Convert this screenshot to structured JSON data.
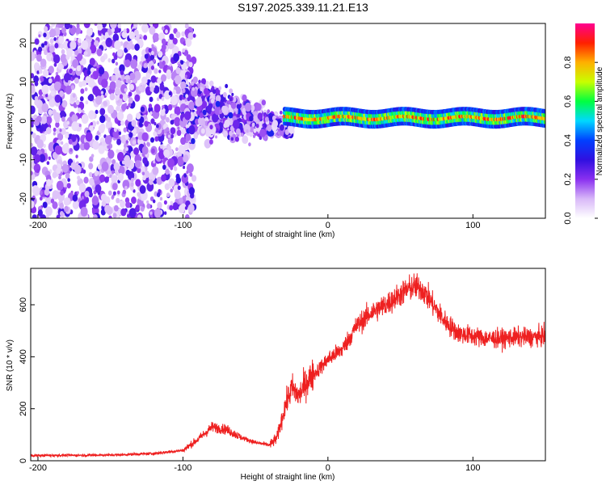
{
  "title": "S197.2025.339.11.21.E13",
  "chart_data": [
    {
      "type": "heatmap",
      "xlabel": "Height of straight line (km)",
      "ylabel": "Frequency (Hz)",
      "xlim": [
        -205,
        150
      ],
      "ylim": [
        -25,
        25
      ],
      "xticks": [
        -200,
        -100,
        0,
        100
      ],
      "yticks": [
        -20,
        -10,
        0,
        10,
        20
      ],
      "colorbar": {
        "label": "Normalized spectral amplitude",
        "range": [
          0,
          1
        ],
        "ticks": [
          "0.0",
          "0.2",
          "0.4",
          "0.6",
          "0.8"
        ],
        "colormap": [
          "#ffffff",
          "#d8b8f8",
          "#8a30f0",
          "#3010e0",
          "#0040ff",
          "#00d8ff",
          "#00ff40",
          "#c8ff00",
          "#ffb000",
          "#ff2000",
          "#ff0090"
        ]
      },
      "regions": [
        {
          "name": "noise",
          "x": [
            -205,
            -100
          ],
          "y": [
            -25,
            25
          ],
          "amplitude": [
            0.05,
            0.3
          ]
        },
        {
          "name": "transition",
          "x": [
            -100,
            -25
          ],
          "y": [
            -15,
            15
          ],
          "amplitude": [
            0.05,
            0.35
          ]
        },
        {
          "name": "signal_line",
          "x": [
            -30,
            150
          ],
          "freq": 0.8,
          "amplitude": [
            0.6,
            0.95
          ]
        }
      ]
    },
    {
      "type": "line",
      "xlabel": "Height of straight line (km)",
      "ylabel": "SNR (10 * v/v)",
      "xlim": [
        -205,
        150
      ],
      "ylim": [
        0,
        740
      ],
      "xticks": [
        -200,
        -100,
        0,
        100
      ],
      "yticks": [
        0,
        200,
        400,
        600
      ],
      "color": "#ee2020",
      "x": [
        -205,
        -150,
        -120,
        -100,
        -90,
        -80,
        -70,
        -60,
        -50,
        -40,
        -35,
        -30,
        -25,
        -20,
        -15,
        -10,
        -5,
        0,
        10,
        20,
        30,
        40,
        50,
        55,
        60,
        65,
        70,
        80,
        90,
        100,
        110,
        120,
        130,
        140,
        150
      ],
      "y": [
        20,
        22,
        28,
        40,
        80,
        130,
        120,
        90,
        70,
        60,
        90,
        200,
        280,
        250,
        300,
        330,
        360,
        390,
        430,
        520,
        570,
        600,
        640,
        660,
        670,
        660,
        620,
        540,
        490,
        480,
        470,
        470,
        475,
        475,
        480
      ]
    }
  ]
}
